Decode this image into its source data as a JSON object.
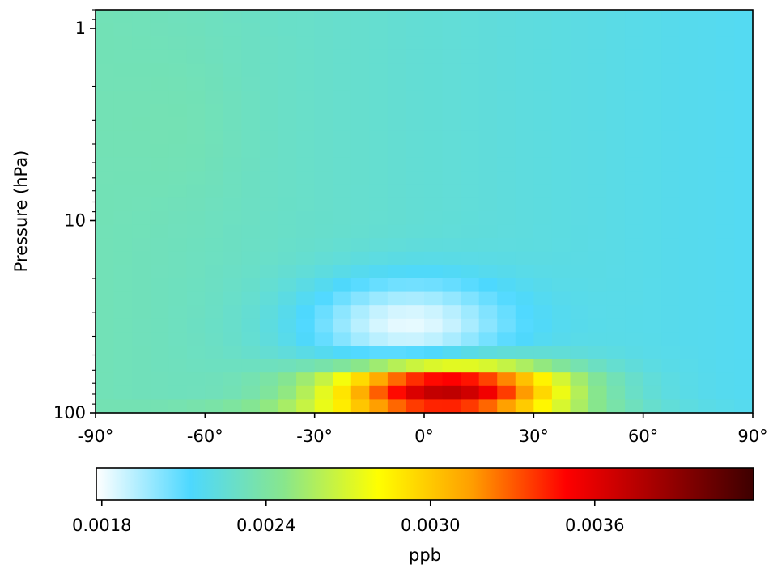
{
  "chart_data": {
    "type": "heatmap",
    "title": "",
    "xlabel": "",
    "ylabel": "Pressure (hPa)",
    "x_range": [
      -90,
      90
    ],
    "y_range_hpa": [
      0.8,
      100
    ],
    "y_scale": "log",
    "y_inverted": true,
    "x_ticks": [
      {
        "value": -90,
        "label": "-90°"
      },
      {
        "value": -60,
        "label": "-60°"
      },
      {
        "value": -30,
        "label": "-30°"
      },
      {
        "value": 0,
        "label": "0°"
      },
      {
        "value": 30,
        "label": "30°"
      },
      {
        "value": 60,
        "label": "60°"
      },
      {
        "value": 90,
        "label": "90°"
      }
    ],
    "y_ticks": [
      {
        "value": 1,
        "label": "1"
      },
      {
        "value": 10,
        "label": "10"
      },
      {
        "value": 100,
        "label": "100"
      }
    ],
    "grid": false,
    "colorbar": {
      "orientation": "horizontal",
      "label": "ppb",
      "vmin": 0.00178,
      "vmax": 0.00418,
      "ticks": [
        {
          "value": 0.0018,
          "label": "0.0018"
        },
        {
          "value": 0.0024,
          "label": "0.0024"
        },
        {
          "value": 0.003,
          "label": "0.0030"
        },
        {
          "value": 0.0036,
          "label": "0.0036"
        }
      ],
      "colors": [
        "#ffffff",
        "#4dd8ff",
        "#88e68c",
        "#ffff00",
        "#ff9e00",
        "#ff0000",
        "#a00000",
        "#3d0000"
      ]
    },
    "field_estimate": {
      "background_ppb": 0.00225,
      "latitude_gradient_ppb_per_deg": -1e-06,
      "minimum": {
        "value_ppb": 0.00182,
        "lat_deg": -5,
        "pressure_hpa": 35
      },
      "maximum": {
        "value_ppb": 0.00372,
        "lat_deg": 6,
        "pressure_hpa": 75
      },
      "tropical_peak_pressure_range_hpa": [
        48,
        100
      ]
    }
  }
}
